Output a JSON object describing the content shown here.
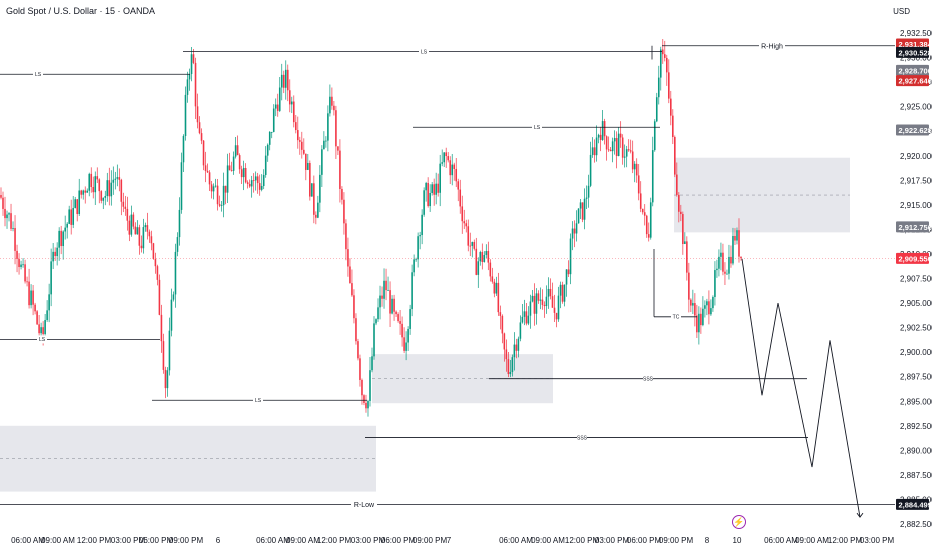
{
  "header": {
    "title": "Gold Spot / U.S. Dollar · 15 · OANDA",
    "currency": "USD"
  },
  "chart_data": {
    "type": "candlestick",
    "title": "Gold Spot / U.S. Dollar · 15 · OANDA",
    "symbol": "Gold Spot / U.S. Dollar",
    "interval": "15",
    "exchange": "OANDA",
    "ylim": [
      2881.5,
      2934
    ],
    "y_ticks": [
      "2,882.500",
      "2,885.000",
      "2,887.500",
      "2,890.000",
      "2,892.500",
      "2,895.000",
      "2,897.500",
      "2,900.000",
      "2,902.500",
      "2,905.000",
      "2,907.500",
      "2,910.000",
      "2,912.500",
      "2,915.000",
      "2,917.500",
      "2,920.000",
      "2,922.500",
      "2,925.000",
      "2,927.500",
      "2,930.000",
      "2,932.500"
    ],
    "x_ticks": [
      "06:00 AM",
      "09:00 AM",
      "12:00 PM",
      "03:00 PM",
      "06:00 PM",
      "09:00 PM",
      "6",
      "06:00 AM",
      "09:00 AM",
      "12:00 PM",
      "03:00 PM",
      "06:00 PM",
      "09:00 PM",
      "7",
      "06:00 AM",
      "09:00 AM",
      "12:00 PM",
      "03:00 PM",
      "06:00 PM",
      "09:00 PM",
      "8",
      "10",
      "06:00 AM",
      "09:00 AM",
      "12:00 PM",
      "03:00 PM"
    ],
    "candle_count": 370,
    "price_path": [
      [
        0,
        2916
      ],
      [
        12,
        2913
      ],
      [
        22,
        2908
      ],
      [
        32,
        2905
      ],
      [
        42,
        2901
      ],
      [
        55,
        2911
      ],
      [
        72,
        2914
      ],
      [
        90,
        2918
      ],
      [
        105,
        2916
      ],
      [
        115,
        2918
      ],
      [
        125,
        2914
      ],
      [
        140,
        2911
      ],
      [
        150,
        2913
      ],
      [
        160,
        2904
      ],
      [
        166,
        2896
      ],
      [
        172,
        2905
      ],
      [
        178,
        2913
      ],
      [
        183,
        2921
      ],
      [
        188,
        2929
      ],
      [
        193,
        2930
      ],
      [
        198,
        2922
      ],
      [
        210,
        2917
      ],
      [
        222,
        2916
      ],
      [
        235,
        2920
      ],
      [
        248,
        2918
      ],
      [
        262,
        2917
      ],
      [
        275,
        2925
      ],
      [
        285,
        2928
      ],
      [
        295,
        2924
      ],
      [
        305,
        2920
      ],
      [
        315,
        2914
      ],
      [
        325,
        2922
      ],
      [
        332,
        2926
      ],
      [
        340,
        2917
      ],
      [
        348,
        2908
      ],
      [
        356,
        2902
      ],
      [
        362,
        2896
      ],
      [
        368,
        2895
      ],
      [
        375,
        2903
      ],
      [
        385,
        2907
      ],
      [
        395,
        2903
      ],
      [
        405,
        2901
      ],
      [
        412,
        2907
      ],
      [
        418,
        2912
      ],
      [
        425,
        2916
      ],
      [
        435,
        2916
      ],
      [
        445,
        2920
      ],
      [
        455,
        2918
      ],
      [
        465,
        2913
      ],
      [
        475,
        2909
      ],
      [
        485,
        2910
      ],
      [
        495,
        2907
      ],
      [
        502,
        2901
      ],
      [
        508,
        2898
      ],
      [
        515,
        2901
      ],
      [
        525,
        2904
      ],
      [
        535,
        2905
      ],
      [
        545,
        2906
      ],
      [
        555,
        2904
      ],
      [
        565,
        2907
      ],
      [
        575,
        2913
      ],
      [
        585,
        2915
      ],
      [
        592,
        2920
      ],
      [
        600,
        2923
      ],
      [
        610,
        2921
      ],
      [
        620,
        2921
      ],
      [
        630,
        2920
      ],
      [
        640,
        2916
      ],
      [
        648,
        2911
      ],
      [
        655,
        2925
      ],
      [
        661,
        2931
      ],
      [
        667,
        2928
      ],
      [
        673,
        2921
      ],
      [
        678,
        2916
      ],
      [
        684,
        2911
      ],
      [
        690,
        2905
      ],
      [
        698,
        2903
      ],
      [
        705,
        2904
      ],
      [
        712,
        2906
      ],
      [
        720,
        2909
      ],
      [
        728,
        2909
      ],
      [
        735,
        2912
      ],
      [
        738,
        2911
      ],
      [
        742,
        2909.5
      ]
    ],
    "last_price": "2,909.550",
    "price_tags": [
      {
        "value": "2,931.384",
        "color": "#d32f2f"
      },
      {
        "value": "2,930.528",
        "color": "#131722"
      },
      {
        "value": "2,928.700",
        "color": "#787b86"
      },
      {
        "value": "2,927.646",
        "color": "#d32f2f"
      },
      {
        "value": "2,922.628",
        "color": "#787b86"
      },
      {
        "value": "2,912.756",
        "color": "#787b86"
      },
      {
        "value": "2,909.550",
        "color": "#f23645"
      },
      {
        "value": "2,884.499",
        "color": "#131722"
      }
    ],
    "levels": [
      {
        "label": "LS",
        "price": 2928.3
      },
      {
        "label": "LS",
        "price": 2901.3
      },
      {
        "label": "LS",
        "price": 2930.6
      },
      {
        "label": "LS",
        "price": 2895.1
      },
      {
        "label": "LS",
        "price": 2922.9
      },
      {
        "label": "SSS",
        "price": 2897.3
      },
      {
        "label": "SSS",
        "price": 2891.3
      },
      {
        "label": "TC",
        "price": 2903.6
      },
      {
        "label": "R-High",
        "price": 2931.2
      },
      {
        "label": "R-Low",
        "price": 2884.5
      }
    ],
    "zones": [
      {
        "from": 2912.2,
        "to": 2919.8
      },
      {
        "from": 2894.8,
        "to": 2899.8
      },
      {
        "from": 2885.8,
        "to": 2892.5
      }
    ],
    "projection": [
      2909.5,
      2895.6,
      2905.0,
      2888.3,
      2901.2,
      2883.2
    ],
    "colors": {
      "up": "#089981",
      "down": "#f23645",
      "zone": "#d1d4dc",
      "grid_line": "#131722"
    }
  }
}
